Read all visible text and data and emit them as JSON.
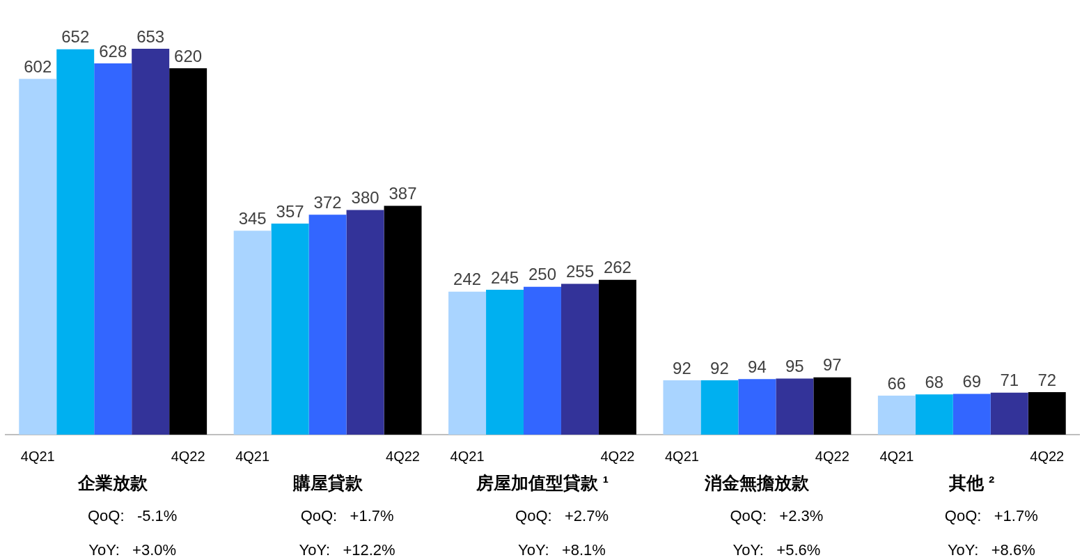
{
  "chart_data": {
    "type": "bar",
    "categories": [
      "企業放款",
      "購屋貸款",
      "房屋加值型貸款 ¹",
      "消金無擔放款",
      "其他 ²"
    ],
    "series": [
      {
        "name": "4Q21",
        "color": "#a9d4ff",
        "values": [
          602,
          345,
          242,
          92,
          66
        ]
      },
      {
        "color": "#00b0f0",
        "values": [
          652,
          357,
          245,
          92,
          68
        ]
      },
      {
        "color": "#3366ff",
        "values": [
          628,
          372,
          250,
          94,
          69
        ]
      },
      {
        "color": "#333399",
        "values": [
          653,
          380,
          255,
          95,
          71
        ]
      },
      {
        "name": "4Q22",
        "color": "#000000",
        "values": [
          620,
          387,
          262,
          97,
          72
        ]
      }
    ],
    "data_labels": true,
    "legend": false,
    "grid": false,
    "annotations": [
      "QoQ:   -5.1%",
      "YoY:   +3.0%",
      "QoQ:   +1.7%",
      "YoY:   +12.2%",
      "QoQ:   +2.7%",
      "YoY:   +8.1%",
      "QoQ:   +2.3%",
      "YoY:   +5.6%",
      "QoQ:   +1.7%",
      "YoY:   +8.6%"
    ]
  }
}
